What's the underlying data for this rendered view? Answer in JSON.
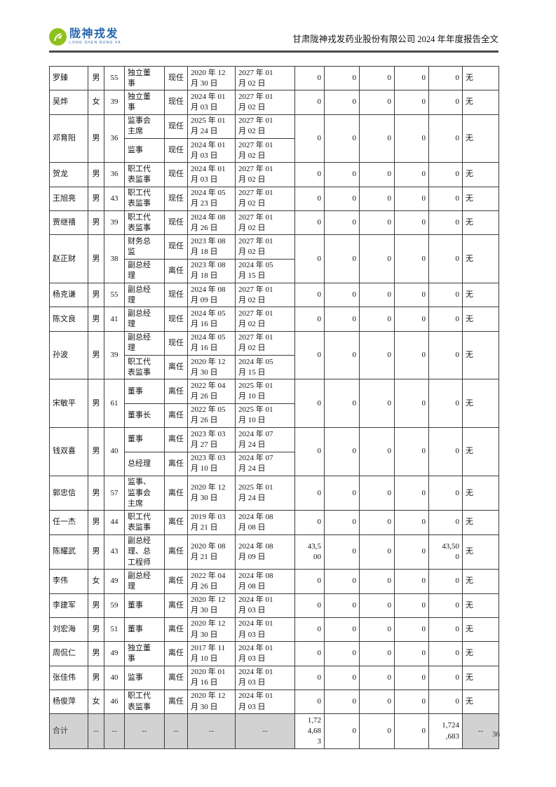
{
  "header": {
    "logo_cn": "陇神戎发",
    "logo_en": "LONG SHEN RONG FA",
    "title": "甘肃陇神戎发药业股份有限公司 2024 年年度报告全文"
  },
  "colors": {
    "logo_green": "#8dc21e",
    "logo_blue": "#2565ae",
    "total_row_bg": "#d2d2d2",
    "table_border": "#3c3c3c"
  },
  "page": {
    "number": "36"
  },
  "table": {
    "rows": [
      {
        "name": "罗臻",
        "gender": "男",
        "age": "55",
        "entries": [
          {
            "position": "独立董\n事",
            "status": "现任",
            "start": "2020 年 12\n月 30 日",
            "end": "2027 年 01\n月 02 日"
          }
        ],
        "values": [
          "0",
          "0",
          "0",
          "0",
          "0"
        ],
        "note": "无"
      },
      {
        "name": "吴烨",
        "gender": "女",
        "age": "39",
        "entries": [
          {
            "position": "独立董\n事",
            "status": "现任",
            "start": "2024 年 01\n月 03 日",
            "end": "2027 年 01\n月 02 日"
          }
        ],
        "values": [
          "0",
          "0",
          "0",
          "0",
          "0"
        ],
        "note": "无"
      },
      {
        "name": "邓育阳",
        "gender": "男",
        "age": "36",
        "entries": [
          {
            "position": "监事会\n主席",
            "status": "现任",
            "start": "2025 年 01\n月 24 日",
            "end": "2027 年 01\n月 02 日"
          },
          {
            "position": "监事",
            "status": "现任",
            "start": "2024 年 01\n月 03 日",
            "end": "2027 年 01\n月 02 日"
          }
        ],
        "values": [
          "0",
          "0",
          "0",
          "0",
          "0"
        ],
        "note": "无"
      },
      {
        "name": "贺龙",
        "gender": "男",
        "age": "36",
        "entries": [
          {
            "position": "职工代\n表监事",
            "status": "现任",
            "start": "2024 年 01\n月 03 日",
            "end": "2027 年 01\n月 02 日"
          }
        ],
        "values": [
          "0",
          "0",
          "0",
          "0",
          "0"
        ],
        "note": "无"
      },
      {
        "name": "王旭亮",
        "gender": "男",
        "age": "43",
        "entries": [
          {
            "position": "职工代\n表监事",
            "status": "现任",
            "start": "2024 年 05\n月 23 日",
            "end": "2027 年 01\n月 02 日"
          }
        ],
        "values": [
          "0",
          "0",
          "0",
          "0",
          "0"
        ],
        "note": "无"
      },
      {
        "name": "贾继禧",
        "gender": "男",
        "age": "39",
        "entries": [
          {
            "position": "职工代\n表监事",
            "status": "现任",
            "start": "2024 年 08\n月 26 日",
            "end": "2027 年 01\n月 02 日"
          }
        ],
        "values": [
          "0",
          "0",
          "0",
          "0",
          "0"
        ],
        "note": "无"
      },
      {
        "name": "赵正财",
        "gender": "男",
        "age": "38",
        "entries": [
          {
            "position": "财务总\n监",
            "status": "现任",
            "start": "2023 年 08\n月 18 日",
            "end": "2027 年 01\n月 02 日"
          },
          {
            "position": "副总经\n理",
            "status": "离任",
            "start": "2023 年 08\n月 18 日",
            "end": "2024 年 05\n月 15 日"
          }
        ],
        "values": [
          "0",
          "0",
          "0",
          "0",
          "0"
        ],
        "note": "无"
      },
      {
        "name": "杨克谦",
        "gender": "男",
        "age": "55",
        "entries": [
          {
            "position": "副总经\n理",
            "status": "现任",
            "start": "2024 年 08\n月 09 日",
            "end": "2027 年 01\n月 02 日"
          }
        ],
        "values": [
          "0",
          "0",
          "0",
          "0",
          "0"
        ],
        "note": "无"
      },
      {
        "name": "陈文良",
        "gender": "男",
        "age": "41",
        "entries": [
          {
            "position": "副总经\n理",
            "status": "现任",
            "start": "2024 年 05\n月 16 日",
            "end": "2027 年 01\n月 02 日"
          }
        ],
        "values": [
          "0",
          "0",
          "0",
          "0",
          "0"
        ],
        "note": "无"
      },
      {
        "name": "孙波",
        "gender": "男",
        "age": "39",
        "entries": [
          {
            "position": "副总经\n理",
            "status": "现任",
            "start": "2024 年 05\n月 16 日",
            "end": "2027 年 01\n月 02 日"
          },
          {
            "position": "职工代\n表监事",
            "status": "离任",
            "start": "2020 年 12\n月 30 日",
            "end": "2024 年 05\n月 15 日"
          }
        ],
        "values": [
          "0",
          "0",
          "0",
          "0",
          "0"
        ],
        "note": "无"
      },
      {
        "name": "宋敏平",
        "gender": "男",
        "age": "61",
        "entries": [
          {
            "position": "董事",
            "status": "离任",
            "start": "2022 年 04\n月 26 日",
            "end": "2025 年 01\n月 10 日"
          },
          {
            "position": "董事长",
            "status": "离任",
            "start": "2022 年 05\n月 26 日",
            "end": "2025 年 01\n月 10 日"
          }
        ],
        "values": [
          "0",
          "0",
          "0",
          "0",
          "0"
        ],
        "note": "无"
      },
      {
        "name": "钱双喜",
        "gender": "男",
        "age": "40",
        "entries": [
          {
            "position": "董事",
            "status": "离任",
            "start": "2023 年 03\n月 27 日",
            "end": "2024 年 07\n月 24 日"
          },
          {
            "position": "总经理",
            "status": "离任",
            "start": "2023 年 03\n月 10 日",
            "end": "2024 年 07\n月 24 日"
          }
        ],
        "values": [
          "0",
          "0",
          "0",
          "0",
          "0"
        ],
        "note": "无"
      },
      {
        "name": "郭忠信",
        "gender": "男",
        "age": "57",
        "entries": [
          {
            "position": "监事、\n监事会\n主席",
            "status": "离任",
            "start": "2020 年 12\n月 30 日",
            "end": "2025 年 01\n月 24 日"
          }
        ],
        "values": [
          "0",
          "0",
          "0",
          "0",
          "0"
        ],
        "note": "无"
      },
      {
        "name": "任一杰",
        "gender": "男",
        "age": "44",
        "entries": [
          {
            "position": "职工代\n表监事",
            "status": "离任",
            "start": "2019 年 03\n月 21 日",
            "end": "2024 年 08\n月 08 日"
          }
        ],
        "values": [
          "0",
          "0",
          "0",
          "0",
          "0"
        ],
        "note": "无"
      },
      {
        "name": "陈耀武",
        "gender": "男",
        "age": "43",
        "entries": [
          {
            "position": "副总经\n理、总\n工程师",
            "status": "离任",
            "start": "2020 年 08\n月 21 日",
            "end": "2024 年 08\n月 09 日"
          }
        ],
        "values": [
          "43,5\n00",
          "0",
          "0",
          "0",
          "43,50\n0"
        ],
        "note": "无"
      },
      {
        "name": "李伟",
        "gender": "女",
        "age": "49",
        "entries": [
          {
            "position": "副总经\n理",
            "status": "离任",
            "start": "2022 年 04\n月 26 日",
            "end": "2024 年 08\n月 08 日"
          }
        ],
        "values": [
          "0",
          "0",
          "0",
          "0",
          "0"
        ],
        "note": "无"
      },
      {
        "name": "李建军",
        "gender": "男",
        "age": "59",
        "entries": [
          {
            "position": "董事",
            "status": "离任",
            "start": "2020 年 12\n月 30 日",
            "end": "2024 年 01\n月 03 日"
          }
        ],
        "values": [
          "0",
          "0",
          "0",
          "0",
          "0"
        ],
        "note": "无"
      },
      {
        "name": "刘宏海",
        "gender": "男",
        "age": "51",
        "entries": [
          {
            "position": "董事",
            "status": "离任",
            "start": "2020 年 12\n月 30 日",
            "end": "2024 年 01\n月 03 日"
          }
        ],
        "values": [
          "0",
          "0",
          "0",
          "0",
          "0"
        ],
        "note": "无"
      },
      {
        "name": "周侃仁",
        "gender": "男",
        "age": "49",
        "entries": [
          {
            "position": "独立董\n事",
            "status": "离任",
            "start": "2017 年 11\n月 10 日",
            "end": "2024 年 01\n月 03 日"
          }
        ],
        "values": [
          "0",
          "0",
          "0",
          "0",
          "0"
        ],
        "note": "无"
      },
      {
        "name": "张佳伟",
        "gender": "男",
        "age": "40",
        "entries": [
          {
            "position": "监事",
            "status": "离任",
            "start": "2020 年 01\n月 16 日",
            "end": "2024 年 01\n月 03 日"
          }
        ],
        "values": [
          "0",
          "0",
          "0",
          "0",
          "0"
        ],
        "note": "无"
      },
      {
        "name": "杨俊萍",
        "gender": "女",
        "age": "46",
        "entries": [
          {
            "position": "职工代\n表监事",
            "status": "离任",
            "start": "2020 年 12\n月 30 日",
            "end": "2024 年 01\n月 03 日"
          }
        ],
        "values": [
          "0",
          "0",
          "0",
          "0",
          "0"
        ],
        "note": "无"
      },
      {
        "name": "合计",
        "gender": "--",
        "age": "--",
        "total": true,
        "entries": [
          {
            "position": "--",
            "status": "--",
            "start": "--",
            "end": "--"
          }
        ],
        "values": [
          "1,72\n4,68\n3",
          "0",
          "0",
          "0",
          "1,724\n,683"
        ],
        "note": "--"
      }
    ]
  }
}
